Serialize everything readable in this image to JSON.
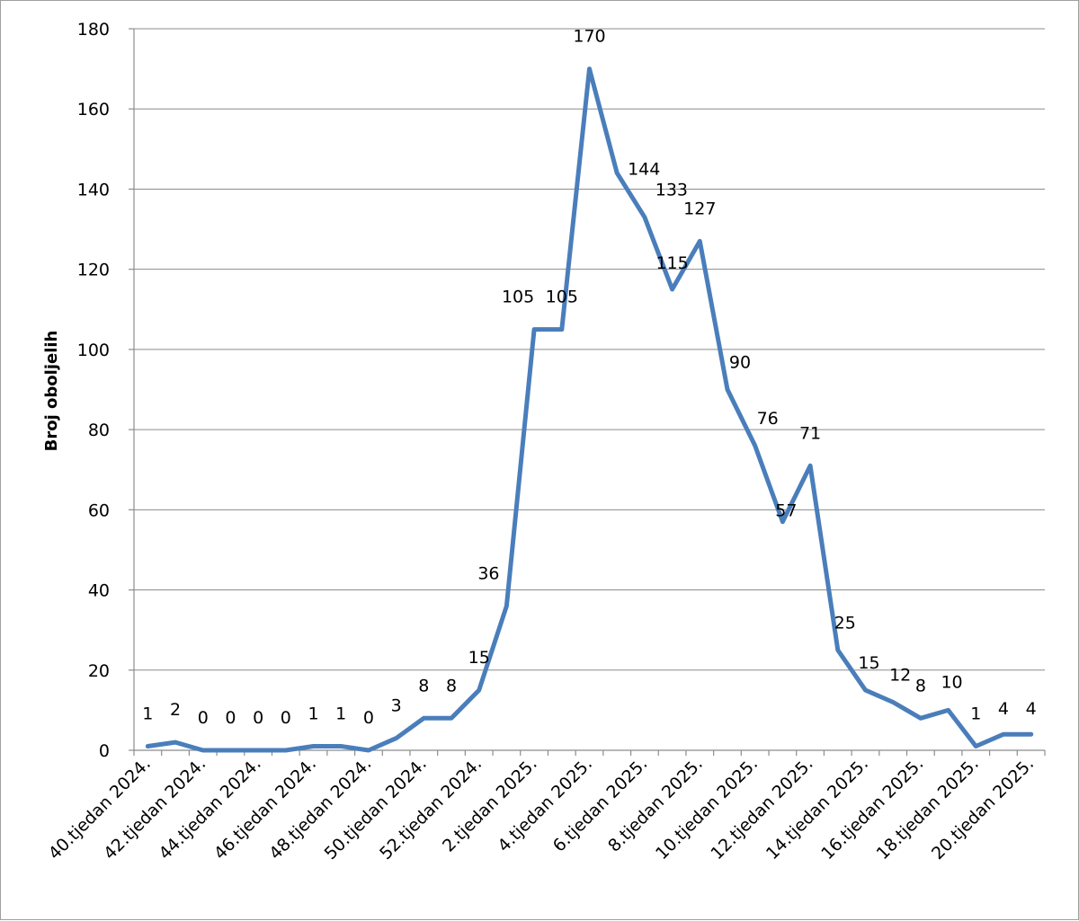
{
  "chart_data": {
    "type": "line",
    "ylabel": "Broj oboljelih",
    "xlabel": "",
    "title": "",
    "ylim": [
      0,
      180
    ],
    "ytick_step": 20,
    "grid": true,
    "legend": "none",
    "line_color": "#4a7ebb",
    "categories": [
      "40.tjedan 2024.",
      "41.tjedan 2024.",
      "42.tjedan 2024.",
      "43.tjedan 2024.",
      "44.tjedan 2024.",
      "45.tjedan 2024.",
      "46.tjedan 2024.",
      "47.tjedan 2024.",
      "48.tjedan 2024.",
      "49.tjedan 2024.",
      "50.tjedan 2024.",
      "51.tjedan 2024.",
      "52.tjedan 2024.",
      "1.tjedan 2025.",
      "2.tjedan 2025.",
      "3.tjedan 2025.",
      "4.tjedan 2025.",
      "5.tjedan 2025.",
      "6.tjedan 2025.",
      "7.tjedan 2025.",
      "8.tjedan 2025.",
      "9.tjedan 2025.",
      "10.tjedan 2025.",
      "11.tjedan 2025.",
      "12.tjedan 2025.",
      "13.tjedan 2025.",
      "14.tjedan 2025.",
      "15.tjedan 2025.",
      "16.tjedan 2025.",
      "17.tjedan 2025.",
      "18.tjedan 2025.",
      "19.tjedan 2025.",
      "20.tjedan 2025."
    ],
    "visible_tick_labels": [
      "40.tjedan 2024.",
      "42.tjedan 2024.",
      "44.tjedan 2024.",
      "46.tjedan 2024.",
      "48.tjedan 2024.",
      "50.tjedan 2024.",
      "52.tjedan 2024.",
      "2.tjedan 2025.",
      "4.tjedan 2025.",
      "6.tjedan 2025.",
      "8.tjedan 2025.",
      "10.tjedan 2025.",
      "12.tjedan 2025.",
      "14.tjedan 2025.",
      "16.tjedan 2025.",
      "18.tjedan 2025.",
      "20.tjedan 2025."
    ],
    "series": [
      {
        "values": [
          1,
          2,
          0,
          0,
          0,
          0,
          1,
          1,
          0,
          3,
          8,
          8,
          15,
          36,
          105,
          105,
          170,
          144,
          133,
          115,
          127,
          90,
          76,
          57,
          71,
          25,
          15,
          12,
          8,
          10,
          1,
          4,
          4
        ]
      }
    ]
  }
}
